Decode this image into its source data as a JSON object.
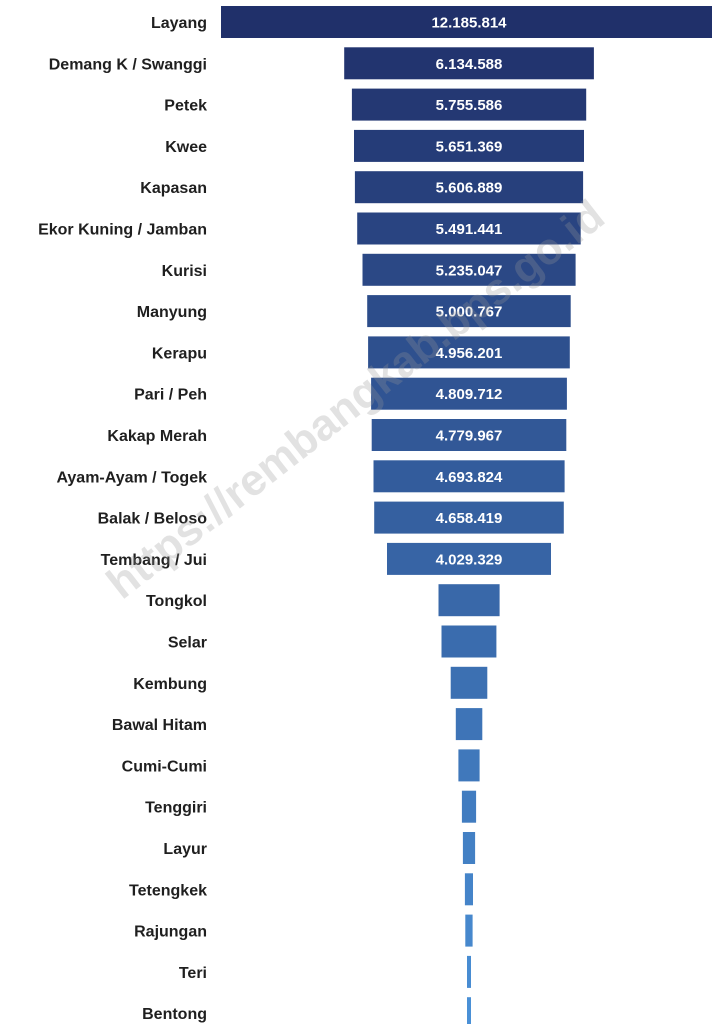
{
  "watermark": "https://rembangkab.bps.go.id",
  "colors": {
    "top": "#20306a",
    "bottom": "#4a90d6",
    "category_text": "#1f1f1f",
    "value_text": "#ffffff"
  },
  "chart_data": {
    "type": "bar",
    "orientation": "horizontal-centered",
    "categories": [
      "Layang",
      "Demang K / Swanggi",
      "Petek",
      "Kwee",
      "Kapasan",
      "Ekor Kuning / Jamban",
      "Kurisi",
      "Manyung",
      "Kerapu",
      "Pari / Peh",
      "Kakap Merah",
      "Ayam-Ayam / Togek",
      "Balak / Beloso",
      "Tembang / Jui",
      "Tongkol",
      "Selar",
      "Kembung",
      "Bawal Hitam",
      "Cumi-Cumi",
      "Tenggiri",
      "Layur",
      "Tetengkek",
      "Rajungan",
      "Teri",
      "Bentong"
    ],
    "values": [
      12185814,
      6134588,
      5755586,
      5651369,
      5606889,
      5491441,
      5235047,
      5000767,
      4956201,
      4809712,
      4779967,
      4693824,
      4658419,
      4029329,
      1500000,
      1350000,
      900000,
      650000,
      520000,
      350000,
      300000,
      200000,
      180000,
      80000,
      60000
    ],
    "value_labels": [
      "12.185.814",
      "6.134.588",
      "5.755.586",
      "5.651.369",
      "5.606.889",
      "5.491.441",
      "5.235.047",
      "5.000.767",
      "4.956.201",
      "4.809.712",
      "4.779.967",
      "4.693.824",
      "4.658.419",
      "4.029.329",
      "",
      "",
      "",
      "",
      "",
      "",
      "",
      "",
      "",
      "",
      ""
    ],
    "grid": false,
    "legend": "none"
  }
}
